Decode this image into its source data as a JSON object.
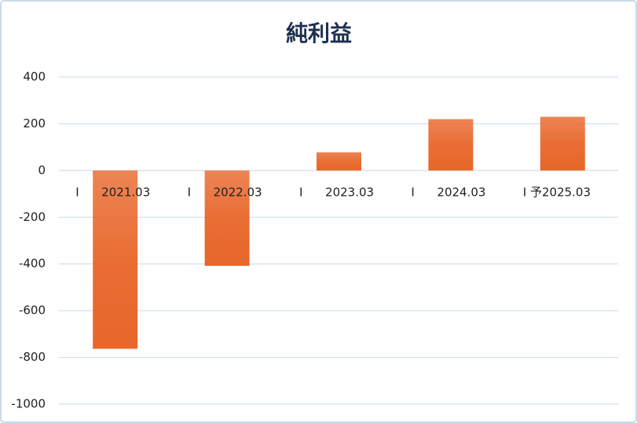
{
  "chart_data": {
    "type": "bar",
    "title": "純利益",
    "categories": [
      "I      2021.03",
      "I      2022.03",
      "I      2023.03",
      "I      2024.03",
      "I 予2025.03"
    ],
    "values": [
      -763,
      -408,
      78,
      220,
      230
    ],
    "color": "#e8662a",
    "ylim": [
      -1000,
      400
    ],
    "yticks": [
      -1000,
      -800,
      -600,
      -400,
      -200,
      0,
      200,
      400
    ],
    "grid": true
  }
}
